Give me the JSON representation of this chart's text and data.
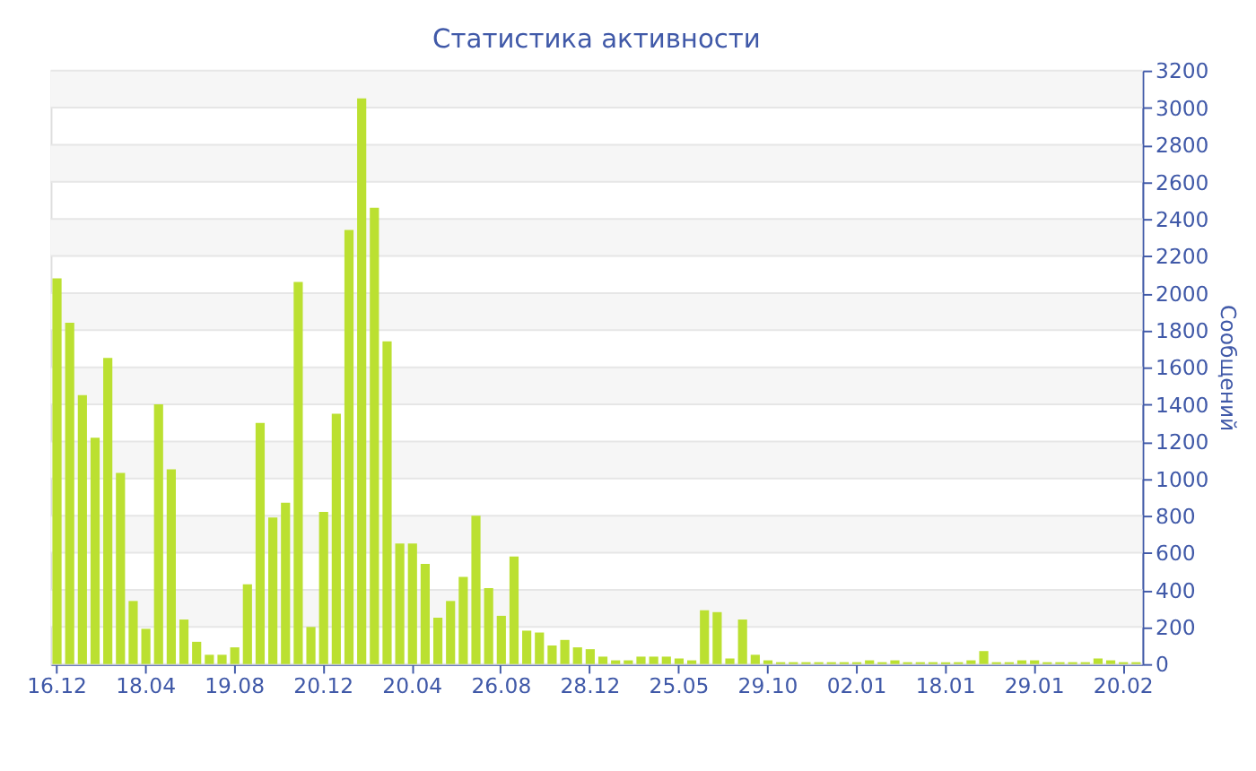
{
  "chart_data": {
    "type": "bar",
    "title": "Статистика активности",
    "ylabel": "Сообщений",
    "categories": [
      "16.12",
      null,
      null,
      null,
      null,
      null,
      null,
      "18.04",
      null,
      null,
      null,
      null,
      null,
      null,
      "19.08",
      null,
      null,
      null,
      null,
      null,
      null,
      "20.12",
      null,
      null,
      null,
      null,
      null,
      null,
      "20.04",
      null,
      null,
      null,
      null,
      null,
      null,
      "26.08",
      null,
      null,
      null,
      null,
      null,
      null,
      "28.12",
      null,
      null,
      null,
      null,
      null,
      null,
      "25.05",
      null,
      null,
      null,
      null,
      null,
      null,
      "29.10",
      null,
      null,
      null,
      null,
      null,
      null,
      "02.01",
      null,
      null,
      null,
      null,
      null,
      null,
      "18.01",
      null,
      null,
      null,
      null,
      null,
      null,
      "29.01",
      null,
      null,
      null,
      null,
      null,
      null,
      "20.02",
      null
    ],
    "series": [
      {
        "color": "#bbe031",
        "values": [
          2080,
          1840,
          1450,
          1220,
          1650,
          1030,
          340,
          190,
          1400,
          1050,
          240,
          120,
          50,
          50,
          90,
          430,
          1300,
          790,
          870,
          2060,
          200,
          820,
          1350,
          2340,
          3050,
          2460,
          1740,
          650,
          650,
          540,
          250,
          340,
          470,
          800,
          410,
          260,
          580,
          180,
          170,
          100,
          130,
          90,
          80,
          40,
          20,
          20,
          40,
          40,
          40,
          30,
          20,
          290,
          280,
          30,
          240,
          50,
          20,
          10,
          10,
          10,
          10,
          10,
          10,
          10,
          20,
          10,
          20,
          10,
          10,
          10,
          10,
          10,
          20,
          70,
          10,
          10,
          20,
          20,
          10,
          10,
          10,
          10,
          30,
          20,
          10,
          10
        ]
      }
    ],
    "ylim": [
      0,
      3200
    ],
    "yticks": [
      0,
      200,
      400,
      600,
      800,
      1000,
      1200,
      1400,
      1600,
      1800,
      2000,
      2200,
      2400,
      2600,
      2800,
      3000,
      3200
    ],
    "grid": "y",
    "legend": false
  }
}
